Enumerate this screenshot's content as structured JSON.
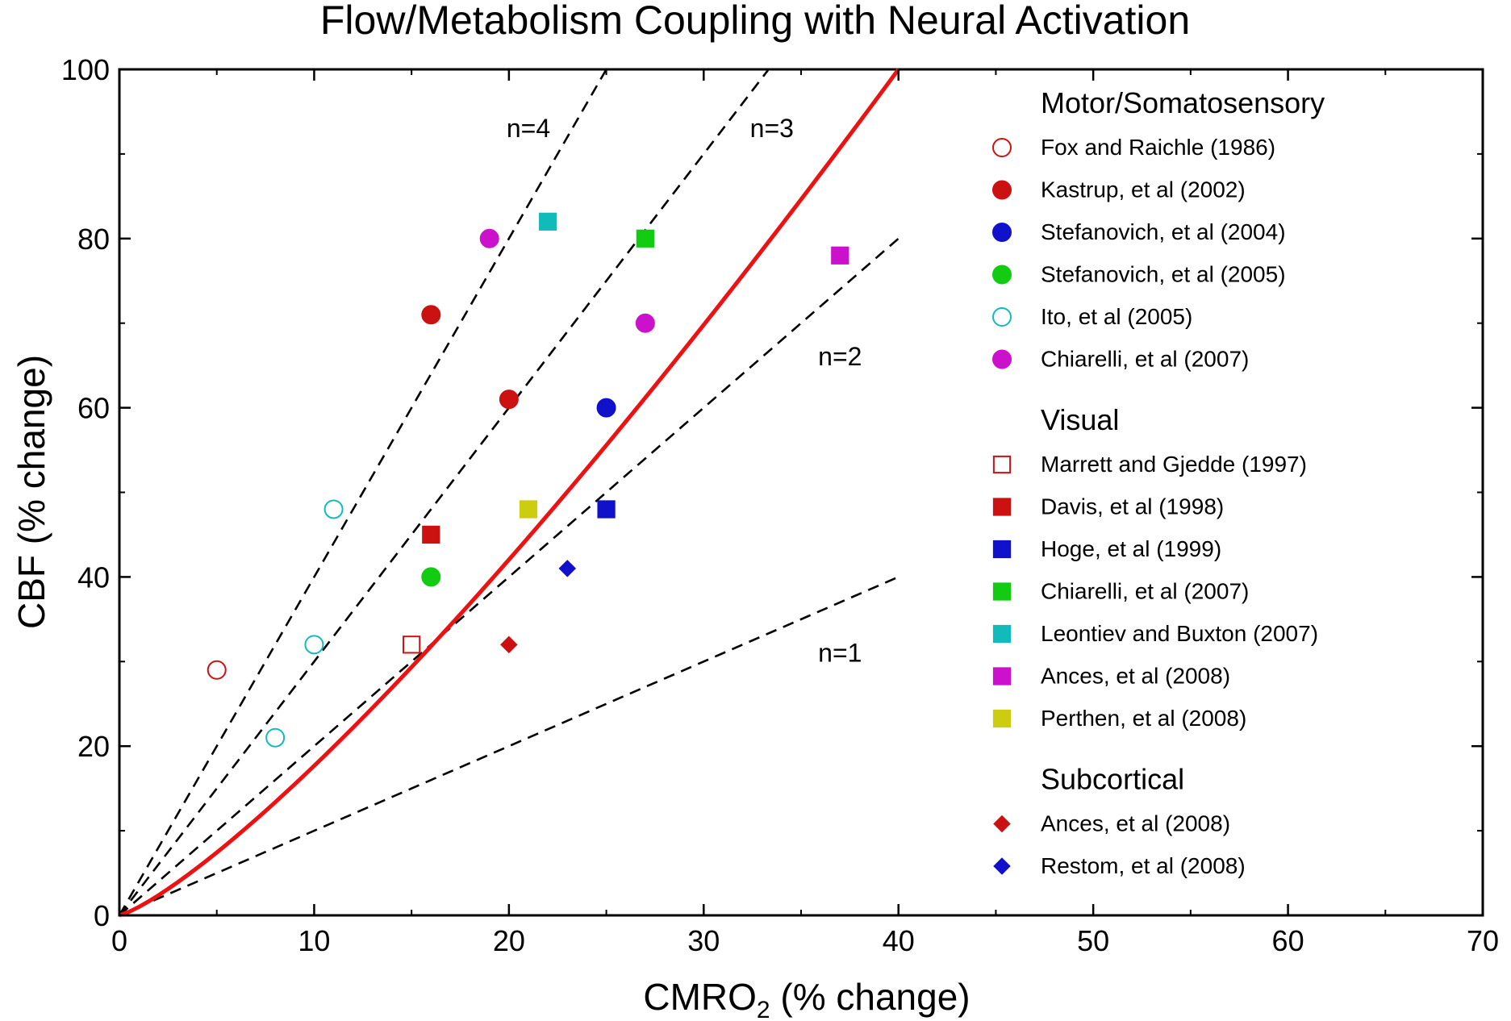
{
  "chart_data": {
    "type": "scatter",
    "title": "Flow/Metabolism Coupling with Neural Activation",
    "xlabel_main": "CMRO",
    "xlabel_sub": "2",
    "xlabel_rest": " (% change)",
    "ylabel": "CBF (% change)",
    "xlim": [
      0,
      70
    ],
    "ylim": [
      0,
      100
    ],
    "xticks": [
      "0",
      "10",
      "20",
      "30",
      "40",
      "50",
      "60",
      "70"
    ],
    "yticks": [
      "0",
      "20",
      "40",
      "60",
      "80",
      "100"
    ],
    "reference_lines": [
      {
        "label": "n=4",
        "slope": 4,
        "x_end": 25
      },
      {
        "label": "n=3",
        "slope": 3,
        "x_end": 33.3
      },
      {
        "label": "n=2",
        "slope": 2,
        "x_end": 40
      },
      {
        "label": "n=1",
        "slope": 1,
        "x_end": 40
      }
    ],
    "fit_curve": {
      "color": "#ee1111",
      "x_start": 0,
      "x_end": 40,
      "y_end": 100,
      "exponent": 1.25
    },
    "legend_groups": [
      {
        "heading": "Motor/Somatosensory",
        "entries": [
          {
            "label": "Fox and Raichle (1986)",
            "marker": "circle",
            "filled": false,
            "color": "#cc1111"
          },
          {
            "label": "Kastrup, et al (2002)",
            "marker": "circle",
            "filled": true,
            "color": "#cc1111"
          },
          {
            "label": "Stefanovich, et al (2004)",
            "marker": "circle",
            "filled": true,
            "color": "#1111cc"
          },
          {
            "label": "Stefanovich, et al (2005)",
            "marker": "circle",
            "filled": true,
            "color": "#11cc11"
          },
          {
            "label": "Ito, et al (2005)",
            "marker": "circle",
            "filled": false,
            "color": "#11bbbb"
          },
          {
            "label": "Chiarelli, et al (2007)",
            "marker": "circle",
            "filled": true,
            "color": "#cc11cc"
          }
        ]
      },
      {
        "heading": "Visual",
        "entries": [
          {
            "label": "Marrett and Gjedde (1997)",
            "marker": "square",
            "filled": false,
            "color": "#cc1111"
          },
          {
            "label": "Davis, et al (1998)",
            "marker": "square",
            "filled": true,
            "color": "#cc1111"
          },
          {
            "label": "Hoge, et al (1999)",
            "marker": "square",
            "filled": true,
            "color": "#1111cc"
          },
          {
            "label": "Chiarelli, et al (2007)",
            "marker": "square",
            "filled": true,
            "color": "#11cc11"
          },
          {
            "label": "Leontiev and Buxton (2007)",
            "marker": "square",
            "filled": true,
            "color": "#11bbbb"
          },
          {
            "label": "Ances, et al (2008)",
            "marker": "square",
            "filled": true,
            "color": "#cc11cc"
          },
          {
            "label": "Perthen, et al (2008)",
            "marker": "square",
            "filled": true,
            "color": "#cccc11"
          }
        ]
      },
      {
        "heading": "Subcortical",
        "entries": [
          {
            "label": "Ances, et al (2008)",
            "marker": "diamond",
            "filled": true,
            "color": "#cc1111"
          },
          {
            "label": "Restom, et al (2008)",
            "marker": "diamond",
            "filled": true,
            "color": "#1111cc"
          }
        ]
      }
    ],
    "points": [
      {
        "x": 5,
        "y": 29,
        "marker": "circle",
        "filled": false,
        "color": "#cc1111"
      },
      {
        "x": 16,
        "y": 71,
        "marker": "circle",
        "filled": true,
        "color": "#cc1111"
      },
      {
        "x": 20,
        "y": 61,
        "marker": "circle",
        "filled": true,
        "color": "#cc1111"
      },
      {
        "x": 25,
        "y": 60,
        "marker": "circle",
        "filled": true,
        "color": "#1111cc"
      },
      {
        "x": 16,
        "y": 40,
        "marker": "circle",
        "filled": true,
        "color": "#11cc11"
      },
      {
        "x": 11,
        "y": 48,
        "marker": "circle",
        "filled": false,
        "color": "#11bbbb"
      },
      {
        "x": 10,
        "y": 32,
        "marker": "circle",
        "filled": false,
        "color": "#11bbbb"
      },
      {
        "x": 8,
        "y": 21,
        "marker": "circle",
        "filled": false,
        "color": "#11bbbb"
      },
      {
        "x": 19,
        "y": 80,
        "marker": "circle",
        "filled": true,
        "color": "#cc11cc"
      },
      {
        "x": 27,
        "y": 70,
        "marker": "circle",
        "filled": true,
        "color": "#cc11cc"
      },
      {
        "x": 15,
        "y": 32,
        "marker": "square",
        "filled": false,
        "color": "#cc1111"
      },
      {
        "x": 16,
        "y": 45,
        "marker": "square",
        "filled": true,
        "color": "#cc1111"
      },
      {
        "x": 25,
        "y": 48,
        "marker": "square",
        "filled": true,
        "color": "#1111cc"
      },
      {
        "x": 27,
        "y": 80,
        "marker": "square",
        "filled": true,
        "color": "#11cc11"
      },
      {
        "x": 22,
        "y": 82,
        "marker": "square",
        "filled": true,
        "color": "#11bbbb"
      },
      {
        "x": 37,
        "y": 78,
        "marker": "square",
        "filled": true,
        "color": "#cc11cc"
      },
      {
        "x": 21,
        "y": 48,
        "marker": "square",
        "filled": true,
        "color": "#cccc11"
      },
      {
        "x": 20,
        "y": 32,
        "marker": "diamond",
        "filled": true,
        "color": "#cc1111"
      },
      {
        "x": 23,
        "y": 41,
        "marker": "diamond",
        "filled": true,
        "color": "#1111cc"
      }
    ]
  }
}
